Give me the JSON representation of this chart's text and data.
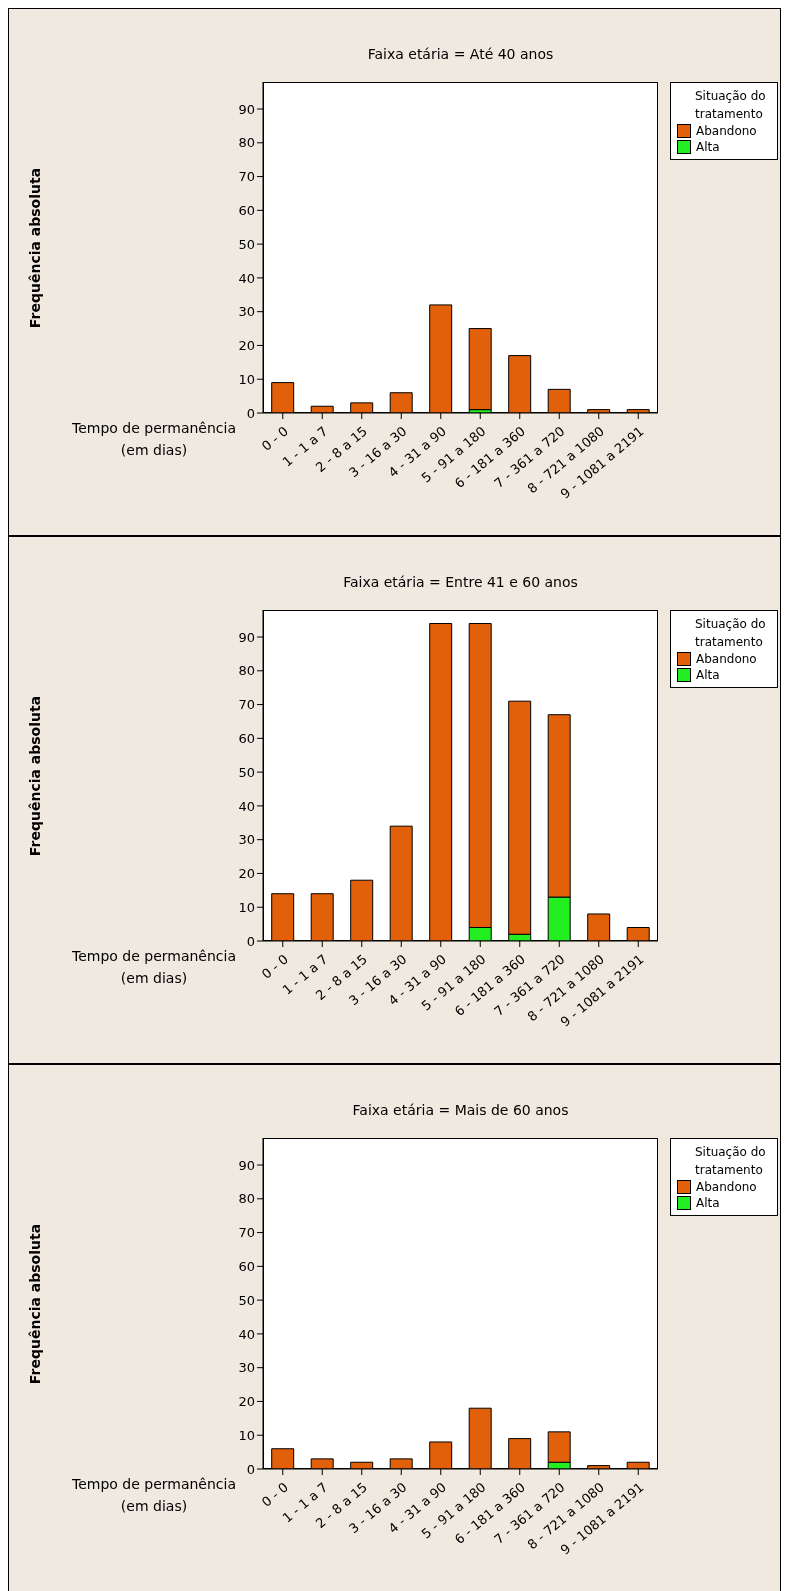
{
  "chart_data": [
    {
      "type": "bar",
      "stacked": true,
      "title": "Faixa etária = Até 40 anos",
      "xlabel": "Tempo de permanência (em dias)",
      "ylabel": "Frequência absoluta",
      "legend_title": "Situação do tratamento",
      "legend": "right",
      "categories": [
        "0 - 0",
        "1 - 1 a 7",
        "2 - 8 a 15",
        "3 - 16 a 30",
        "4 - 31 a 90",
        "5 - 91 a 180",
        "6 - 181 a 360",
        "7 - 361 a 720",
        "8 - 721 a 1080",
        "9 - 1081 a 2191"
      ],
      "ylim": [
        0,
        98
      ],
      "yticks": [
        0,
        10,
        20,
        30,
        40,
        50,
        60,
        70,
        80,
        90
      ],
      "series": [
        {
          "name": "Alta",
          "color": "#22ee22",
          "values": [
            0,
            0,
            0,
            0,
            0,
            1,
            0,
            0,
            0,
            0
          ]
        },
        {
          "name": "Abandono",
          "color": "#e3600a",
          "values": [
            9,
            2,
            3,
            6,
            32,
            24,
            17,
            7,
            1,
            1
          ]
        }
      ]
    },
    {
      "type": "bar",
      "stacked": true,
      "title": "Faixa etária = Entre 41 e 60 anos",
      "xlabel": "Tempo de permanência (em dias)",
      "ylabel": "Frequência absoluta",
      "legend_title": "Situação do tratamento",
      "legend": "right",
      "categories": [
        "0 - 0",
        "1 - 1 a 7",
        "2 - 8 a 15",
        "3 - 16 a 30",
        "4 - 31 a 90",
        "5 - 91 a 180",
        "6 - 181 a 360",
        "7 - 361 a 720",
        "8 - 721 a 1080",
        "9 - 1081 a 2191"
      ],
      "ylim": [
        0,
        98
      ],
      "yticks": [
        0,
        10,
        20,
        30,
        40,
        50,
        60,
        70,
        80,
        90
      ],
      "series": [
        {
          "name": "Alta",
          "color": "#22ee22",
          "values": [
            0,
            0,
            0,
            0,
            0,
            4,
            2,
            13,
            0,
            0
          ]
        },
        {
          "name": "Abandono",
          "color": "#e3600a",
          "values": [
            14,
            14,
            18,
            34,
            94,
            90,
            69,
            54,
            8,
            4
          ]
        }
      ]
    },
    {
      "type": "bar",
      "stacked": true,
      "title": "Faixa etária = Mais de 60 anos",
      "xlabel": "Tempo de permanência (em dias)",
      "ylabel": "Frequência absoluta",
      "legend_title": "Situação do tratamento",
      "legend": "right",
      "categories": [
        "0 - 0",
        "1 - 1 a 7",
        "2 - 8 a 15",
        "3 - 16 a 30",
        "4 - 31 a 90",
        "5 - 91 a 180",
        "6 - 181 a 360",
        "7 - 361 a 720",
        "8 - 721 a 1080",
        "9 - 1081 a 2191"
      ],
      "ylim": [
        0,
        98
      ],
      "yticks": [
        0,
        10,
        20,
        30,
        40,
        50,
        60,
        70,
        80,
        90
      ],
      "series": [
        {
          "name": "Alta",
          "color": "#22ee22",
          "values": [
            0,
            0,
            0,
            0,
            0,
            0,
            0,
            2,
            0,
            0
          ]
        },
        {
          "name": "Abandono",
          "color": "#e3600a",
          "values": [
            6,
            3,
            2,
            3,
            8,
            18,
            9,
            9,
            1,
            2
          ]
        }
      ]
    }
  ]
}
